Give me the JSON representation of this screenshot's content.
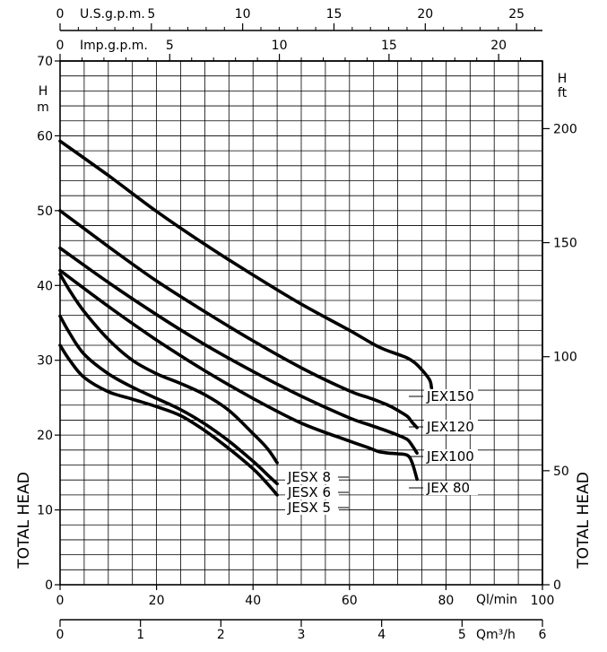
{
  "chart_data": {
    "type": "line",
    "title": "",
    "xlabel": "Ql/min",
    "xlim": [
      0,
      100
    ],
    "x_ticks": [
      "0",
      "20",
      "40",
      "60",
      "80",
      "100"
    ],
    "ylabel_left": "TOTAL HEAD",
    "ylabel_right": "TOTAL HEAD",
    "y_unit_left": [
      "H",
      "m"
    ],
    "y_unit_right": [
      "H",
      "ft"
    ],
    "ylim": [
      0,
      70
    ],
    "y_ticks_left": [
      "0",
      "10",
      "20",
      "30",
      "40",
      "50",
      "60",
      "70"
    ],
    "y_ticks_right": [
      "0",
      "50",
      "100",
      "150",
      "200"
    ],
    "y_ticks_right_values_m": [
      0,
      15.24,
      30.48,
      45.72,
      60.96
    ],
    "secondary_x_axes": [
      {
        "label": "U.S.g.p.m.",
        "per_lpm": 0.264172,
        "ticks": [
          "0",
          "5",
          "10",
          "15",
          "20",
          "25"
        ],
        "tick_values": [
          0,
          5,
          10,
          15,
          20,
          25
        ]
      },
      {
        "label": "Imp.g.p.m.",
        "per_lpm": 0.219969,
        "ticks": [
          "0",
          "5",
          "10",
          "15",
          "20"
        ],
        "tick_values": [
          0,
          5,
          10,
          15,
          20
        ]
      },
      {
        "label": "Qm³/h",
        "per_lpm": 0.06,
        "ticks": [
          "0",
          "1",
          "2",
          "3",
          "4",
          "5",
          "6"
        ],
        "tick_values": [
          0,
          1,
          2,
          3,
          4,
          5,
          6
        ]
      }
    ],
    "grid": true,
    "series": [
      {
        "name": "JEX150",
        "x": [
          0,
          10,
          20,
          30,
          40,
          50,
          60,
          66,
          70,
          72,
          74,
          76.5,
          77
        ],
        "y": [
          59.3,
          54.7,
          49.9,
          45.5,
          41.4,
          37.5,
          34.0,
          31.8,
          30.8,
          30.3,
          29.4,
          27.5,
          26.3
        ]
      },
      {
        "name": "JEX120",
        "x": [
          0,
          10,
          20,
          30,
          40,
          50,
          60,
          64,
          68,
          70,
          72,
          73,
          74
        ],
        "y": [
          50.0,
          45.2,
          40.6,
          36.5,
          32.6,
          29.0,
          25.9,
          25.0,
          24.0,
          23.3,
          22.5,
          21.7,
          21.0
        ]
      },
      {
        "name": "JEX100",
        "x": [
          0,
          10,
          20,
          30,
          40,
          50,
          60,
          64,
          68,
          70,
          72,
          73,
          74
        ],
        "y": [
          45.0,
          40.4,
          36.1,
          32.1,
          28.5,
          25.2,
          22.3,
          21.4,
          20.5,
          20.0,
          19.4,
          18.6,
          17.6
        ]
      },
      {
        "name": "JEX 80",
        "x": [
          0,
          10,
          20,
          30,
          40,
          50,
          60,
          64,
          66,
          68,
          70,
          72,
          73,
          74
        ],
        "y": [
          42.0,
          37.2,
          32.7,
          28.6,
          24.9,
          21.6,
          19.2,
          18.3,
          17.8,
          17.6,
          17.5,
          17.3,
          16.3,
          14.1
        ]
      },
      {
        "name": "JESX 8",
        "x": [
          0,
          2,
          5,
          10,
          15,
          20,
          25,
          30,
          35,
          40,
          43,
          45
        ],
        "y": [
          41.5,
          39.3,
          36.5,
          32.8,
          30.0,
          28.2,
          26.9,
          25.4,
          23.3,
          20.2,
          18.2,
          16.3
        ]
      },
      {
        "name": "JESX 6",
        "x": [
          0,
          2,
          5,
          10,
          15,
          20,
          25,
          30,
          35,
          40,
          43,
          45
        ],
        "y": [
          35.9,
          33.6,
          30.8,
          28.2,
          26.4,
          24.9,
          23.4,
          21.5,
          19.2,
          16.5,
          14.7,
          13.5
        ]
      },
      {
        "name": "JESX 5",
        "x": [
          0,
          2,
          5,
          10,
          15,
          20,
          25,
          30,
          35,
          40,
          43,
          45
        ],
        "y": [
          32.0,
          30.0,
          27.7,
          25.8,
          24.8,
          23.8,
          22.6,
          20.6,
          18.2,
          15.5,
          13.5,
          12.0
        ]
      }
    ]
  }
}
